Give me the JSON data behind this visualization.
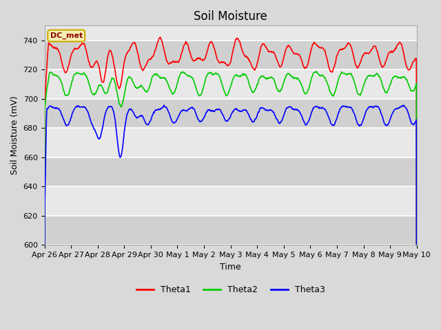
{
  "title": "Soil Moisture",
  "xlabel": "Time",
  "ylabel": "Soil Moisture (mV)",
  "ylim": [
    600,
    750
  ],
  "yticks": [
    600,
    620,
    640,
    660,
    680,
    700,
    720,
    740
  ],
  "x_labels": [
    "Apr 26",
    "Apr 27",
    "Apr 28",
    "Apr 29",
    "Apr 30",
    "May 1",
    "May 2",
    "May 3",
    "May 4",
    "May 5",
    "May 6",
    "May 7",
    "May 8",
    "May 9",
    "May 10"
  ],
  "annotation_text": "DC_met",
  "line_colors": {
    "Theta1": "#ff0000",
    "Theta2": "#00cc00",
    "Theta3": "#0000ff"
  },
  "background_color": "#d9d9d9",
  "plot_bg_color": "#e8e8e8",
  "band_color": "#d0d0d0",
  "grid_color": "#ffffff",
  "legend_labels": [
    "Theta1",
    "Theta2",
    "Theta3"
  ],
  "title_fontsize": 12,
  "label_fontsize": 9,
  "tick_fontsize": 8
}
